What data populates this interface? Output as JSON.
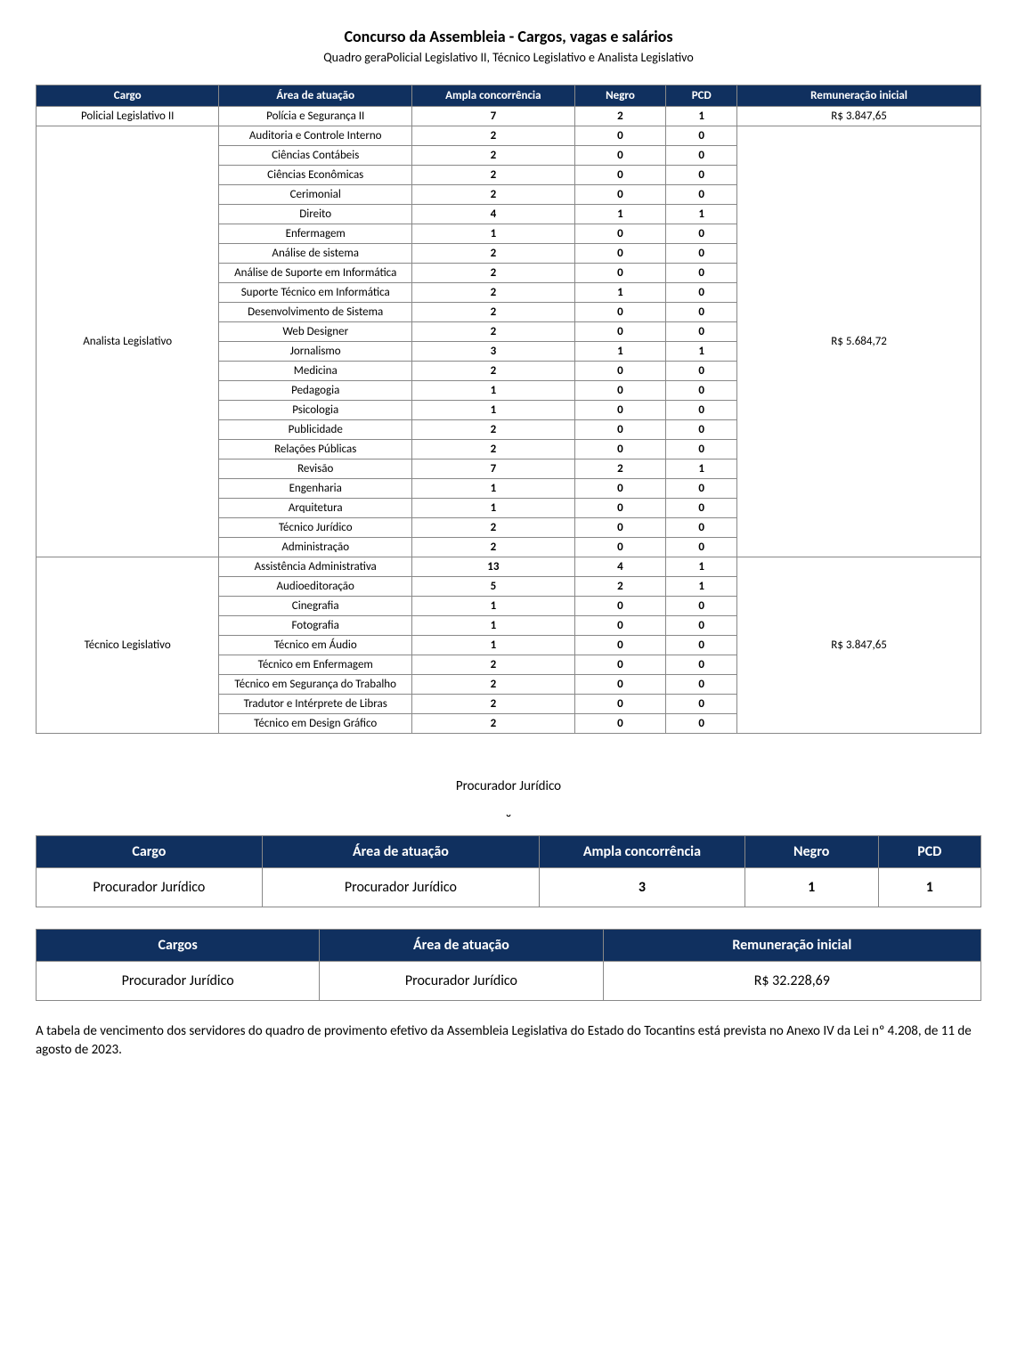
{
  "page": {
    "title": "Concurso da Assembleia - Cargos, vagas e salários",
    "subtitle": "Quadro geraPolicial Legislativo II, Técnico Legislativo e Analista Legislativo"
  },
  "main_table": {
    "columns": [
      "Cargo",
      "Área de atuação",
      "Ampla concorrência",
      "Negro",
      "PCD",
      "Remuneração inicial"
    ],
    "col_widths_pct": [
      18,
      19,
      16,
      9,
      7,
      24
    ],
    "groups": [
      {
        "cargo": "Policial Legislativo II",
        "remuneracao": "R$ 3.847,65",
        "rows": [
          {
            "area": "Polícia e Segurança II",
            "ampla": "7",
            "negro": "2",
            "pcd": "1"
          }
        ]
      },
      {
        "cargo": "Analista Legislativo",
        "remuneracao": "R$ 5.684,72",
        "rows": [
          {
            "area": "Auditoria e Controle Interno",
            "ampla": "2",
            "negro": "0",
            "pcd": "0"
          },
          {
            "area": "Ciências Contábeis",
            "ampla": "2",
            "negro": "0",
            "pcd": "0"
          },
          {
            "area": "Ciências Econômicas",
            "ampla": "2",
            "negro": "0",
            "pcd": "0"
          },
          {
            "area": "Cerimonial",
            "ampla": "2",
            "negro": "0",
            "pcd": "0"
          },
          {
            "area": "Direito",
            "ampla": "4",
            "negro": "1",
            "pcd": "1"
          },
          {
            "area": "Enfermagem",
            "ampla": "1",
            "negro": "0",
            "pcd": "0"
          },
          {
            "area": "Análise de sistema",
            "ampla": "2",
            "negro": "0",
            "pcd": "0"
          },
          {
            "area": "Análise de Suporte em Informática",
            "ampla": "2",
            "negro": "0",
            "pcd": "0"
          },
          {
            "area": "Suporte Técnico em Informática",
            "ampla": "2",
            "negro": "1",
            "pcd": "0"
          },
          {
            "area": "Desenvolvimento de Sistema",
            "ampla": "2",
            "negro": "0",
            "pcd": "0"
          },
          {
            "area": "Web Designer",
            "ampla": "2",
            "negro": "0",
            "pcd": "0"
          },
          {
            "area": "Jornalismo",
            "ampla": "3",
            "negro": "1",
            "pcd": "1"
          },
          {
            "area": "Medicina",
            "ampla": "2",
            "negro": "0",
            "pcd": "0"
          },
          {
            "area": "Pedagogia",
            "ampla": "1",
            "negro": "0",
            "pcd": "0"
          },
          {
            "area": "Psicologia",
            "ampla": "1",
            "negro": "0",
            "pcd": "0"
          },
          {
            "area": "Publicidade",
            "ampla": "2",
            "negro": "0",
            "pcd": "0"
          },
          {
            "area": "Relações Públicas",
            "ampla": "2",
            "negro": "0",
            "pcd": "0"
          },
          {
            "area": "Revisão",
            "ampla": "7",
            "negro": "2",
            "pcd": "1"
          },
          {
            "area": "Engenharia",
            "ampla": "1",
            "negro": "0",
            "pcd": "0"
          },
          {
            "area": "Arquitetura",
            "ampla": "1",
            "negro": "0",
            "pcd": "0"
          },
          {
            "area": "Técnico Jurídico",
            "ampla": "2",
            "negro": "0",
            "pcd": "0"
          },
          {
            "area": "Administração",
            "ampla": "2",
            "negro": "0",
            "pcd": "0"
          }
        ]
      },
      {
        "cargo": "Técnico Legislativo",
        "remuneracao": "R$ 3.847,65",
        "rows": [
          {
            "area": "Assistência Administrativa",
            "ampla": "13",
            "negro": "4",
            "pcd": "1"
          },
          {
            "area": "Audioeditoração",
            "ampla": "5",
            "negro": "2",
            "pcd": "1"
          },
          {
            "area": "Cinegrafia",
            "ampla": "1",
            "negro": "0",
            "pcd": "0"
          },
          {
            "area": "Fotografia",
            "ampla": "1",
            "negro": "0",
            "pcd": "0"
          },
          {
            "area": "Técnico em Áudio",
            "ampla": "1",
            "negro": "0",
            "pcd": "0"
          },
          {
            "area": "Técnico em Enfermagem",
            "ampla": "2",
            "negro": "0",
            "pcd": "0"
          },
          {
            "area": "Técnico em Segurança do Trabalho",
            "ampla": "2",
            "negro": "0",
            "pcd": "0"
          },
          {
            "area": "Tradutor e Intérprete de Libras",
            "ampla": "2",
            "negro": "0",
            "pcd": "0"
          },
          {
            "area": "Técnico em Design Gráfico",
            "ampla": "2",
            "negro": "0",
            "pcd": "0"
          }
        ]
      }
    ]
  },
  "section2_title": "Procurador Jurídico",
  "proc_table1": {
    "columns": [
      "Cargo",
      "Área de atuação",
      "Ampla concorrência",
      "Negro",
      "PCD"
    ],
    "col_widths_pct": [
      22,
      27,
      20,
      13,
      10
    ],
    "row": {
      "cargo": "Procurador Jurídico",
      "area": "Procurador Jurídico",
      "ampla": "3",
      "negro": "1",
      "pcd": "1"
    }
  },
  "proc_table2": {
    "columns": [
      "Cargos",
      "Área de atuação",
      "Remuneração inicial"
    ],
    "col_widths_pct": [
      30,
      30,
      40
    ],
    "row": {
      "cargo": "Procurador Jurídico",
      "area": "Procurador Jurídico",
      "rem": "R$ 32.228,69"
    }
  },
  "footnote": "A tabela de vencimento dos servidores do quadro de provimento efetivo da Assembleia Legislativa do Estado do Tocantins está prevista no Anexo IV da Lei nº 4.208, de 11 de agosto de 2023.",
  "colors": {
    "header_bg": "#10305f",
    "header_text": "#ffffff",
    "border": "#888888",
    "text": "#000000",
    "background": "#ffffff"
  }
}
